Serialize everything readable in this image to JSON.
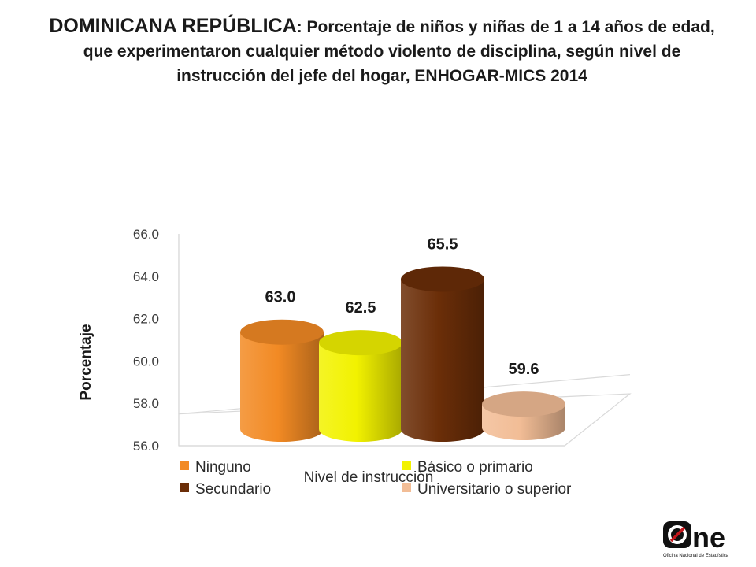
{
  "title": {
    "lead": "DOMINICANA REPÚBLICA",
    "rest": ": Porcentaje de niños y niñas de 1 a 14 años de edad, que experimentaron cualquier método violento de disciplina, según nivel de instrucción del jefe del hogar, ENHOGAR-MICS 2014"
  },
  "chart_data": {
    "type": "bar",
    "title": "",
    "ylabel": "Porcentaje",
    "xlabel": "Nivel de instrucción",
    "ylim": [
      56.0,
      66.0
    ],
    "yticks": [
      "56.0",
      "58.0",
      "60.0",
      "62.0",
      "64.0",
      "66.0"
    ],
    "categories": [
      "Ninguno",
      "Básico o primario",
      "Secundario",
      "Universitario o superior"
    ],
    "values": [
      63.0,
      62.5,
      65.5,
      59.6
    ],
    "value_labels": [
      "63.0",
      "62.5",
      "65.5",
      "59.6"
    ],
    "colors": [
      "#F28A24",
      "#F2F200",
      "#6B2E08",
      "#F2BD96"
    ],
    "legend_position": "bottom",
    "grid": false
  },
  "logo": {
    "text": "ne",
    "subtitle": "Oficina Nacional de Estadística"
  }
}
